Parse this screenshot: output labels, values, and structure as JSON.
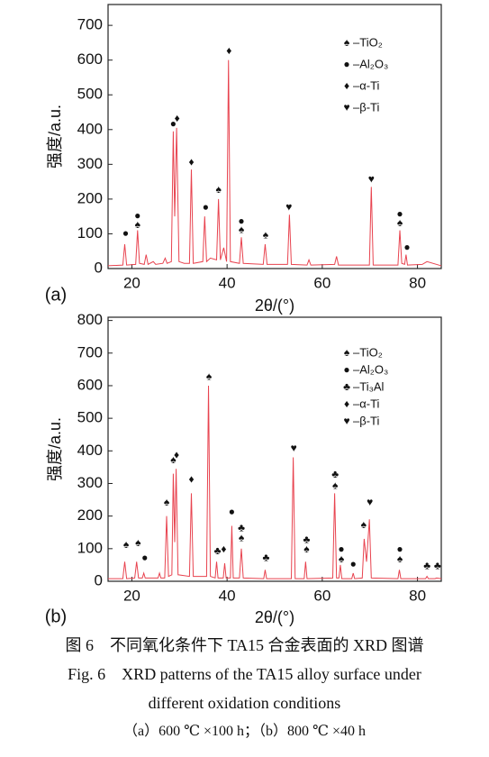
{
  "chart_data": [
    {
      "type": "line",
      "panel": "(a)",
      "xlabel": "2θ/(°)",
      "ylabel": "强度/a.u.",
      "xlim": [
        15,
        85
      ],
      "xticks": [
        20,
        40,
        60,
        80
      ],
      "ylim": [
        0,
        760
      ],
      "yticks": [
        0,
        100,
        200,
        300,
        400,
        500,
        600,
        700
      ],
      "x": [
        15,
        18.1,
        18.5,
        18.9,
        20.8,
        21.2,
        21.6,
        22.6,
        23,
        23.4,
        24.5,
        25,
        26.5,
        27,
        27.4,
        28.3,
        28.7,
        29.0,
        29.4,
        29.9,
        31,
        32.1,
        32.5,
        32.9,
        34.9,
        35.3,
        35.7,
        36.5,
        37.8,
        38.2,
        38.6,
        39.3,
        39.9,
        40.3,
        40.7,
        42.6,
        43,
        43.4,
        47.6,
        48,
        48.4,
        52.7,
        53.1,
        53.5,
        56.8,
        57.2,
        57.6,
        62.6,
        63,
        63.4,
        69.9,
        70.3,
        70.7,
        75.9,
        76.3,
        76.7,
        77.3,
        77.6,
        77.9,
        81,
        82,
        85
      ],
      "series": [
        {
          "color": "#e8434f",
          "values": [
            8,
            10,
            70,
            10,
            12,
            110,
            15,
            12,
            40,
            12,
            20,
            12,
            15,
            30,
            15,
            20,
            395,
            150,
            405,
            20,
            15,
            15,
            285,
            15,
            20,
            150,
            20,
            30,
            25,
            200,
            25,
            60,
            20,
            600,
            20,
            15,
            90,
            15,
            12,
            70,
            12,
            12,
            155,
            12,
            10,
            25,
            10,
            12,
            35,
            10,
            10,
            235,
            10,
            10,
            110,
            15,
            12,
            40,
            10,
            12,
            20,
            8
          ]
        }
      ],
      "annotations": [
        {
          "x": 18.7,
          "y": 85,
          "text": "●"
        },
        {
          "x": 21.2,
          "y": 135,
          "text": "●"
        },
        {
          "x": 21.2,
          "y": 110,
          "text": "♠"
        },
        {
          "x": 28.7,
          "y": 400,
          "text": "●"
        },
        {
          "x": 29.5,
          "y": 415,
          "text": "♦"
        },
        {
          "x": 32.5,
          "y": 290,
          "text": "♦"
        },
        {
          "x": 35.5,
          "y": 160,
          "text": "●"
        },
        {
          "x": 38.2,
          "y": 210,
          "text": "♠"
        },
        {
          "x": 40.4,
          "y": 610,
          "text": "♦"
        },
        {
          "x": 43,
          "y": 120,
          "text": "●"
        },
        {
          "x": 43,
          "y": 95,
          "text": "♠"
        },
        {
          "x": 48.1,
          "y": 80,
          "text": "♠"
        },
        {
          "x": 53,
          "y": 160,
          "text": "♥"
        },
        {
          "x": 70.3,
          "y": 240,
          "text": "♥"
        },
        {
          "x": 76.3,
          "y": 140,
          "text": "●"
        },
        {
          "x": 76.3,
          "y": 115,
          "text": "♠"
        },
        {
          "x": 77.8,
          "y": 45,
          "text": "●"
        }
      ],
      "legend": [
        {
          "symbol": "♠",
          "label": "–TiO₂"
        },
        {
          "symbol": "●",
          "label": "–Al₂O₃"
        },
        {
          "symbol": "♦",
          "label": "–α-Ti"
        },
        {
          "symbol": "♥",
          "label": "–β-Ti"
        }
      ]
    },
    {
      "type": "line",
      "panel": "(b)",
      "xlabel": "2θ/(°)",
      "ylabel": "强度/a.u.",
      "xlim": [
        15,
        85
      ],
      "xticks": [
        20,
        40,
        60,
        80
      ],
      "ylim": [
        0,
        810
      ],
      "yticks": [
        0,
        100,
        200,
        300,
        400,
        500,
        600,
        700,
        800
      ],
      "x": [
        15,
        18.1,
        18.5,
        18.9,
        20.6,
        21,
        21.4,
        22.2,
        22.5,
        22.8,
        25.5,
        25.8,
        26.1,
        26.9,
        27.3,
        27.7,
        28.4,
        28.7,
        29.0,
        29.3,
        29.7,
        32.1,
        32.5,
        32.9,
        35.7,
        36.1,
        36.5,
        37.5,
        37.8,
        38.1,
        39.2,
        39.5,
        39.8,
        40.7,
        41,
        41.3,
        42.6,
        43,
        43.4,
        47.7,
        48,
        48.3,
        53.5,
        53.9,
        54.3,
        56.2,
        56.5,
        56.8,
        62.2,
        62.6,
        63,
        63.5,
        63.8,
        64.1,
        66.2,
        66.5,
        66.8,
        68.4,
        68.8,
        69.3,
        69.9,
        70.3,
        75.9,
        76.2,
        76.5,
        81.7,
        82,
        82.3,
        83.7,
        84,
        85
      ],
      "series": [
        {
          "color": "#e8434f",
          "values": [
            8,
            8,
            60,
            8,
            10,
            60,
            10,
            10,
            25,
            10,
            10,
            25,
            10,
            10,
            200,
            15,
            20,
            330,
            120,
            345,
            20,
            15,
            270,
            15,
            15,
            600,
            15,
            10,
            60,
            10,
            10,
            55,
            10,
            10,
            170,
            10,
            10,
            100,
            10,
            8,
            35,
            8,
            8,
            380,
            8,
            8,
            60,
            8,
            10,
            270,
            10,
            10,
            50,
            8,
            8,
            25,
            8,
            10,
            130,
            60,
            190,
            10,
            8,
            35,
            8,
            8,
            15,
            8,
            8,
            10,
            8
          ]
        }
      ],
      "annotations": [
        {
          "x": 18.8,
          "y": 95,
          "text": "♠"
        },
        {
          "x": 21.3,
          "y": 100,
          "text": "♠"
        },
        {
          "x": 22.7,
          "y": 55,
          "text": "●"
        },
        {
          "x": 27.3,
          "y": 225,
          "text": "♠"
        },
        {
          "x": 28.7,
          "y": 355,
          "text": "♠"
        },
        {
          "x": 29.4,
          "y": 370,
          "text": "♦"
        },
        {
          "x": 32.5,
          "y": 295,
          "text": "♦"
        },
        {
          "x": 36.2,
          "y": 610,
          "text": "♠"
        },
        {
          "x": 38,
          "y": 75,
          "text": "♣"
        },
        {
          "x": 39.3,
          "y": 80,
          "text": "♦"
        },
        {
          "x": 41,
          "y": 195,
          "text": "●"
        },
        {
          "x": 43,
          "y": 145,
          "text": "♣"
        },
        {
          "x": 43,
          "y": 115,
          "text": "♠"
        },
        {
          "x": 48.2,
          "y": 55,
          "text": "♣"
        },
        {
          "x": 54,
          "y": 390,
          "text": "♥"
        },
        {
          "x": 56.7,
          "y": 110,
          "text": "♣"
        },
        {
          "x": 56.7,
          "y": 80,
          "text": "♠"
        },
        {
          "x": 62.7,
          "y": 310,
          "text": "♣"
        },
        {
          "x": 62.7,
          "y": 275,
          "text": "♠"
        },
        {
          "x": 64,
          "y": 80,
          "text": "●"
        },
        {
          "x": 64,
          "y": 50,
          "text": "♠"
        },
        {
          "x": 66.5,
          "y": 35,
          "text": "●"
        },
        {
          "x": 68.7,
          "y": 155,
          "text": "♠"
        },
        {
          "x": 70,
          "y": 225,
          "text": "♥"
        },
        {
          "x": 76.3,
          "y": 80,
          "text": "●"
        },
        {
          "x": 76.3,
          "y": 50,
          "text": "♠"
        },
        {
          "x": 82,
          "y": 30,
          "text": "♣"
        },
        {
          "x": 84.2,
          "y": 30,
          "text": "♣"
        }
      ],
      "legend": [
        {
          "symbol": "♠",
          "label": "–TiO₂"
        },
        {
          "symbol": "●",
          "label": "–Al₂O₃"
        },
        {
          "symbol": "♣",
          "label": "–Ti₃Al"
        },
        {
          "symbol": "♦",
          "label": "–α-Ti"
        },
        {
          "symbol": "♥",
          "label": "–β-Ti"
        }
      ]
    }
  ],
  "caption": [
    "图 6　不同氧化条件下 TA15 合金表面的 XRD 图谱",
    "Fig. 6　XRD patterns of the TA15 alloy surface under",
    "different oxidation conditions",
    "（a）600 ℃ ×100 h；（b）800 ℃ ×40 h"
  ]
}
